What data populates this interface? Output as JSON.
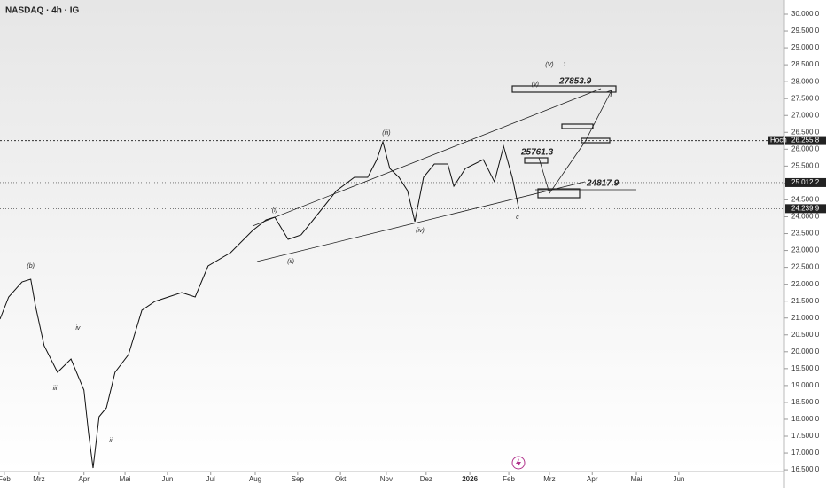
{
  "chart_data": {
    "type": "line",
    "title": "NASDAQ · 4h · IG",
    "x": [
      -0.1,
      0.1,
      0.41,
      0.61,
      0.72,
      0.92,
      1.23,
      1.54,
      1.84,
      1.95,
      2.05,
      2.19,
      2.36,
      2.56,
      2.87,
      3.18,
      3.48,
      3.79,
      4.1,
      4.41,
      4.71,
      5.23,
      5.74,
      6.05,
      6.25,
      6.56,
      6.86,
      7.27,
      7.68,
      8.09,
      8.4,
      8.61,
      8.75,
      8.91,
      9.12,
      9.32,
      9.49,
      9.69,
      9.94,
      10.25,
      10.39,
      10.66,
      11.07,
      11.33,
      11.54,
      11.74,
      11.89
    ],
    "series": [
      {
        "name": "NASDAQ",
        "color": "#111111",
        "values": [
          20966,
          21623,
          22069,
          22148,
          21360,
          20179,
          19391,
          19785,
          18866,
          17553,
          16555,
          18078,
          18340,
          19391,
          19916,
          21229,
          21492,
          21623,
          21755,
          21623,
          22542,
          22936,
          23593,
          23908,
          23987,
          23330,
          23461,
          24118,
          24775,
          25168,
          25168,
          25693,
          26219,
          25431,
          25168,
          24775,
          23855,
          25168,
          25562,
          25562,
          24906,
          25431,
          25693,
          25037,
          26087,
          25168,
          24249
        ]
      }
    ],
    "xlim": [
      -0.1,
      18.03
    ],
    "xticks": [
      {
        "value": 0,
        "label": "Feb"
      },
      {
        "value": 0.8,
        "label": "Mrz"
      },
      {
        "value": 1.84,
        "label": "Apr"
      },
      {
        "value": 2.79,
        "label": "Mai"
      },
      {
        "value": 3.77,
        "label": "Jun"
      },
      {
        "value": 4.77,
        "label": "Jul"
      },
      {
        "value": 5.8,
        "label": "Aug"
      },
      {
        "value": 6.78,
        "label": "Sep"
      },
      {
        "value": 7.77,
        "label": "Okt"
      },
      {
        "value": 8.83,
        "label": "Nov"
      },
      {
        "value": 9.75,
        "label": "Dez"
      },
      {
        "value": 10.76,
        "label": "2026"
      },
      {
        "value": 11.66,
        "label": "Feb"
      },
      {
        "value": 12.6,
        "label": "Mrz"
      },
      {
        "value": 13.59,
        "label": "Apr"
      },
      {
        "value": 14.61,
        "label": "Mai"
      },
      {
        "value": 15.59,
        "label": "Jun"
      }
    ],
    "ylim": [
      16450,
      30420
    ],
    "yticks": [
      {
        "value": 30000,
        "label": "30.000,0"
      },
      {
        "value": 29500,
        "label": "29.500,0"
      },
      {
        "value": 29000,
        "label": "29.000,0"
      },
      {
        "value": 28500,
        "label": "28.500,0"
      },
      {
        "value": 28000,
        "label": "28.000,0"
      },
      {
        "value": 27500,
        "label": "27.500,0"
      },
      {
        "value": 27000,
        "label": "27.000,0"
      },
      {
        "value": 26500,
        "label": "26.500,0"
      },
      {
        "value": 26000,
        "label": "26.000,0"
      },
      {
        "value": 25500,
        "label": "25.500,0"
      },
      {
        "value": 25000,
        "label": "25.000,0"
      },
      {
        "value": 24500,
        "label": "24.500,0"
      },
      {
        "value": 24000,
        "label": "24.000,0"
      },
      {
        "value": 23500,
        "label": "23.500,0"
      },
      {
        "value": 23000,
        "label": "23.000,0"
      },
      {
        "value": 22500,
        "label": "22.500,0"
      },
      {
        "value": 22000,
        "label": "22.000,0"
      },
      {
        "value": 21500,
        "label": "21.500,0"
      },
      {
        "value": 21000,
        "label": "21.000,0"
      },
      {
        "value": 20500,
        "label": "20.500,0"
      },
      {
        "value": 20000,
        "label": "20.000,0"
      },
      {
        "value": 19500,
        "label": "19.500,0"
      },
      {
        "value": 19000,
        "label": "19.000,0"
      },
      {
        "value": 18500,
        "label": "18.500,0"
      },
      {
        "value": 18000,
        "label": "18.000,0"
      },
      {
        "value": 17500,
        "label": "17.500,0"
      },
      {
        "value": 17000,
        "label": "17.000,0"
      },
      {
        "value": 16500,
        "label": "16.500,0"
      }
    ],
    "levels": [
      {
        "value": 26255.8,
        "label": "26.255,8",
        "name": "Hoch"
      },
      {
        "value": 25012.2,
        "label": "25.012,2"
      },
      {
        "value": 24239.9,
        "label": "24.239,9"
      }
    ],
    "targets": [
      "27853.9",
      "25761.3",
      "24817.9"
    ],
    "annotations": [
      {
        "text": "(b)",
        "x": 0.61,
        "y": 22542
      },
      {
        "text": "(V)",
        "x": 12.6,
        "y": 28503
      },
      {
        "text": "1",
        "x": 12.95,
        "y": 28503
      },
      {
        "text": "(v)",
        "x": 12.27,
        "y": 27925
      },
      {
        "text": "(iii)",
        "x": 8.83,
        "y": 26481
      },
      {
        "text": "(iv)",
        "x": 9.61,
        "y": 23593
      },
      {
        "text": "(ii)",
        "x": 6.62,
        "y": 22674
      },
      {
        "text": "(i)",
        "x": 6.25,
        "y": 24197
      },
      {
        "text": "c",
        "x": 11.86,
        "y": 23987
      },
      {
        "text": "ii",
        "x": 2.46,
        "y": 17369
      },
      {
        "text": "iii",
        "x": 1.17,
        "y": 18919
      },
      {
        "text": "iv",
        "x": 1.7,
        "y": 20704
      }
    ]
  }
}
